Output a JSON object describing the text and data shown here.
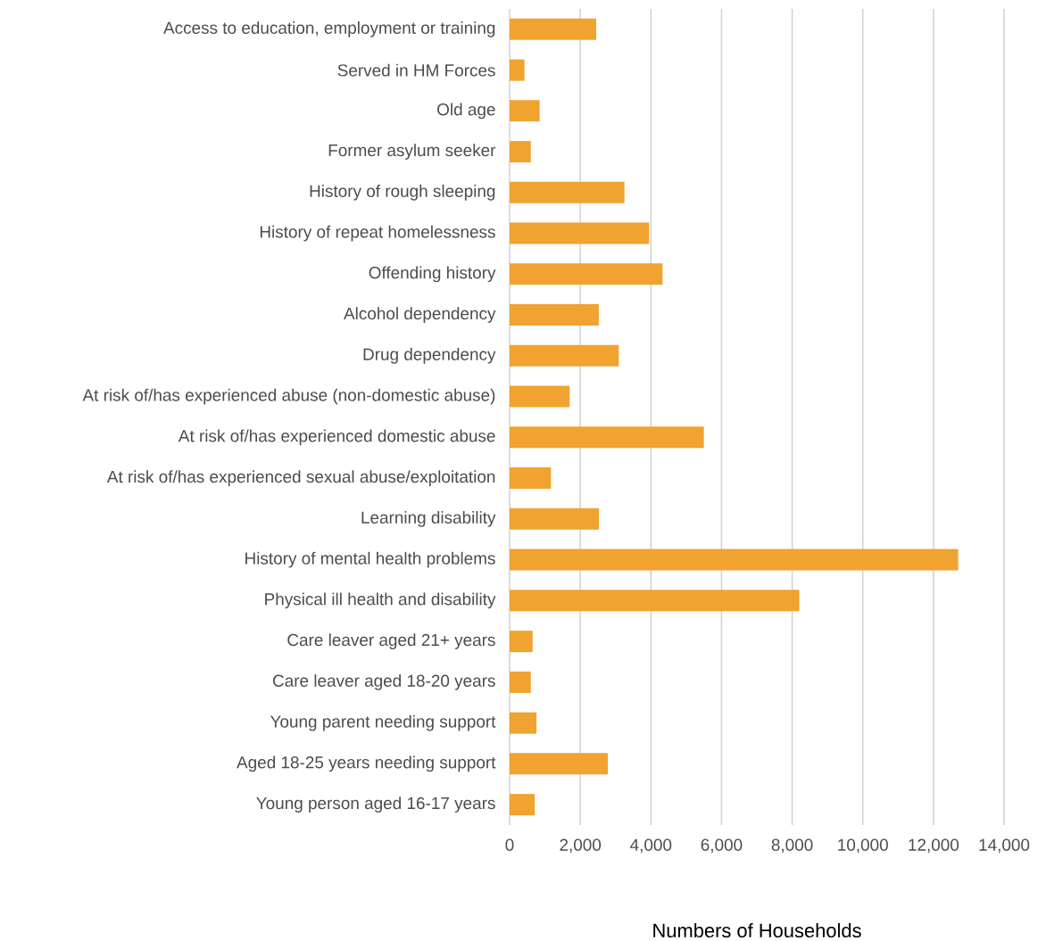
{
  "chart_data": {
    "type": "bar",
    "orientation": "horizontal",
    "xlabel": "Numbers of Households",
    "categories": [
      "Access to education, employment or training",
      "Served in HM Forces",
      "Old age",
      "Former asylum seeker",
      "History of rough sleeping",
      "History of repeat homelessness",
      "Offending history",
      "Alcohol dependency",
      "Drug dependency",
      "At risk of/has experienced abuse (non-domestic abuse)",
      "At risk of/has experienced domestic abuse",
      "At risk of/has experienced sexual abuse/exploitation",
      "Learning disability",
      "History of mental health problems",
      "Physical ill health and disability",
      "Care leaver aged 21+ years",
      "Care leaver aged 18-20 years",
      "Young parent needing support",
      "Aged 18-25 years needing support",
      "Young person aged 16-17 years"
    ],
    "values": [
      2450,
      420,
      850,
      600,
      3250,
      3950,
      4330,
      2525,
      3090,
      1700,
      5500,
      1170,
      2530,
      12700,
      8200,
      650,
      600,
      760,
      2780,
      710
    ],
    "color": "#f0a330",
    "xlim": [
      0,
      14000
    ],
    "xticks": [
      0,
      {
        "value": 2000,
        "label": "2,000"
      },
      {
        "value": 4000,
        "label": "4,000"
      },
      {
        "value": 6000,
        "label": "6,000"
      },
      {
        "value": 8000,
        "label": "8,000"
      },
      {
        "value": 10000,
        "label": "10,000"
      },
      {
        "value": 12000,
        "label": "12,000"
      },
      {
        "value": 14000,
        "label": "14,000"
      }
    ],
    "grid": "x"
  }
}
